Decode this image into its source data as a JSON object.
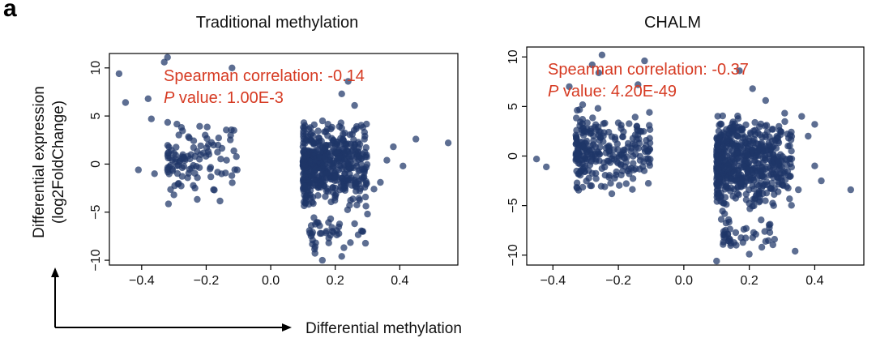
{
  "panel_label": "a",
  "shared_axes": {
    "ylabel_line1": "Differential expression",
    "ylabel_line2": "(log2FoldChange)",
    "xlabel": "Differential methylation"
  },
  "colors": {
    "points": "#1f3668",
    "annotation": "#d63a22",
    "axis": "#000000"
  },
  "chart_data": [
    {
      "type": "scatter",
      "title": "Traditional methylation",
      "xlim": [
        -0.5,
        0.58
      ],
      "ylim": [
        -10.5,
        11.5
      ],
      "xticks": [
        "−0.4",
        "−0.2",
        "0.0",
        "0.2",
        "0.4"
      ],
      "xtick_values": [
        -0.4,
        -0.2,
        0.0,
        0.2,
        0.4
      ],
      "yticks": [
        "−10",
        "−5",
        "0",
        "5",
        "10"
      ],
      "ytick_values": [
        -10,
        -5,
        0,
        5,
        10
      ],
      "annotation_line1": "Spearman correlation: -0.14",
      "annotation_p_italic": "P",
      "annotation_line2_rest": " value: 1.00E-3",
      "point_color": "#1f3668",
      "clusters": [
        {
          "xmin": -0.32,
          "xmax": -0.1,
          "ymin": -4,
          "ymax": 5,
          "count": 110,
          "seed": 11
        },
        {
          "xmin": 0.1,
          "xmax": 0.3,
          "ymin": -5,
          "ymax": 5,
          "count": 520,
          "seed": 23
        },
        {
          "xmin": 0.12,
          "xmax": 0.3,
          "ymin": -9.5,
          "ymax": -5,
          "count": 40,
          "seed": 31
        }
      ],
      "points": [
        [
          -0.47,
          9.4
        ],
        [
          -0.45,
          6.4
        ],
        [
          -0.32,
          11.1
        ],
        [
          -0.33,
          10.6
        ],
        [
          -0.38,
          6.8
        ],
        [
          -0.37,
          4.7
        ],
        [
          -0.12,
          10.0
        ],
        [
          -0.41,
          -0.6
        ],
        [
          -0.36,
          -1.0
        ],
        [
          -0.3,
          -3.2
        ],
        [
          0.55,
          2.2
        ],
        [
          0.45,
          2.6
        ],
        [
          0.41,
          -0.2
        ],
        [
          0.38,
          1.8
        ],
        [
          0.36,
          0.4
        ],
        [
          0.34,
          -1.9
        ],
        [
          0.32,
          -2.6
        ],
        [
          0.22,
          -9.6
        ],
        [
          0.16,
          -10.0
        ],
        [
          0.18,
          -8.2
        ],
        [
          0.26,
          -6.2
        ],
        [
          0.3,
          -5.2
        ],
        [
          0.26,
          6.1
        ],
        [
          0.22,
          7.3
        ],
        [
          0.24,
          8.6
        ]
      ]
    },
    {
      "type": "scatter",
      "title": "CHALM",
      "xlim": [
        -0.48,
        0.55
      ],
      "ylim": [
        -11.0,
        11.0
      ],
      "xticks": [
        "−0.4",
        "−0.2",
        "0.0",
        "0.2",
        "0.4"
      ],
      "xtick_values": [
        -0.4,
        -0.2,
        0.0,
        0.2,
        0.4
      ],
      "yticks": [
        "−10",
        "−5",
        "0",
        "5",
        "10"
      ],
      "ytick_values": [
        -10,
        -5,
        0,
        5,
        10
      ],
      "annotation_line1": "Spearman correlation: -0.37",
      "annotation_p_italic": "P",
      "annotation_line2_rest": " value: 4.20E-49",
      "point_color": "#1f3668",
      "clusters": [
        {
          "xmin": -0.33,
          "xmax": -0.1,
          "ymin": -4,
          "ymax": 5,
          "count": 260,
          "seed": 41
        },
        {
          "xmin": 0.1,
          "xmax": 0.33,
          "ymin": -6,
          "ymax": 5,
          "count": 560,
          "seed": 53
        },
        {
          "xmin": 0.12,
          "xmax": 0.28,
          "ymin": -9.8,
          "ymax": -6,
          "count": 40,
          "seed": 67
        }
      ],
      "points": [
        [
          -0.45,
          -0.3
        ],
        [
          -0.42,
          -1.1
        ],
        [
          -0.25,
          10.2
        ],
        [
          -0.28,
          9.2
        ],
        [
          -0.35,
          7.0
        ],
        [
          -0.26,
          8.4
        ],
        [
          -0.12,
          9.6
        ],
        [
          -0.14,
          7.2
        ],
        [
          0.51,
          -3.4
        ],
        [
          0.42,
          -2.5
        ],
        [
          0.4,
          3.2
        ],
        [
          0.4,
          -1.0
        ],
        [
          0.38,
          2.0
        ],
        [
          0.36,
          4.0
        ],
        [
          0.35,
          -3.4
        ],
        [
          0.34,
          -9.6
        ],
        [
          0.1,
          -10.6
        ],
        [
          0.2,
          -9.9
        ],
        [
          0.16,
          -9.0
        ],
        [
          0.22,
          -7.9
        ],
        [
          0.17,
          8.6
        ],
        [
          0.21,
          6.8
        ],
        [
          0.25,
          5.6
        ],
        [
          -0.22,
          -3.8
        ]
      ]
    }
  ]
}
